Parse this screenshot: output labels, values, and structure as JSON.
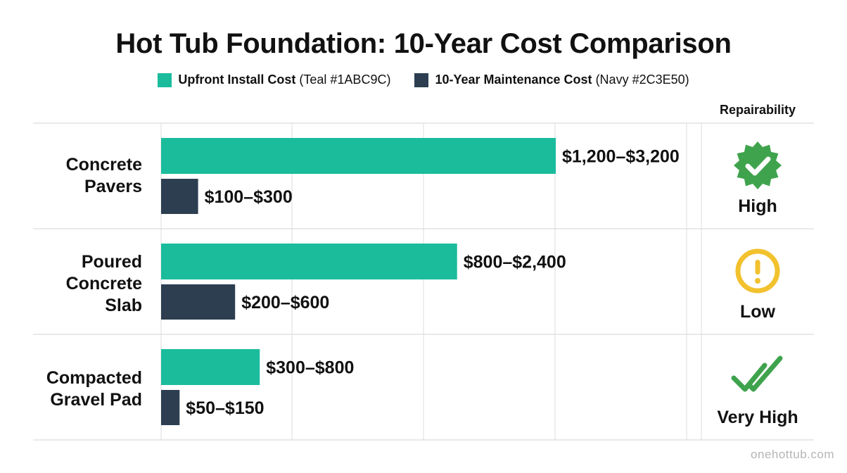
{
  "chart_data": {
    "type": "bar",
    "orientation": "horizontal",
    "title": "Hot Tub Foundation: 10-Year Cost Comparison",
    "categories": [
      [
        "Concrete",
        "Pavers"
      ],
      [
        "Poured",
        "Concrete",
        "Slab"
      ],
      [
        "Compacted",
        "Gravel Pad"
      ]
    ],
    "series": [
      {
        "name": "Upfront Install Cost",
        "legend_note": "(Teal #1ABC9C)",
        "color": "#1ABC9C",
        "values": [
          [
            1200,
            3200
          ],
          [
            800,
            2400
          ],
          [
            300,
            800
          ]
        ],
        "labels": [
          "$1,200–$3,200",
          "$800–$2,400",
          "$300–$800"
        ]
      },
      {
        "name": "10-Year Maintenance Cost",
        "legend_note": "(Navy #2C3E50)",
        "color": "#2C3E50",
        "values": [
          [
            100,
            300
          ],
          [
            200,
            600
          ],
          [
            50,
            150
          ]
        ],
        "labels": [
          "$100–$300",
          "$200–$600",
          "$50–$150"
        ]
      }
    ],
    "repairability": {
      "header": "Repairability",
      "values": [
        {
          "text": "High",
          "icon": "check-badge-icon",
          "color": "#3FA34D"
        },
        {
          "text": "Low",
          "icon": "warning-circle-icon",
          "color": "#F2C12E"
        },
        {
          "text": "Very High",
          "icon": "double-check-icon",
          "color": "#3FA34D"
        }
      ]
    },
    "grid": true,
    "legend_position": "top-center"
  },
  "watermark": "onehottub.com"
}
